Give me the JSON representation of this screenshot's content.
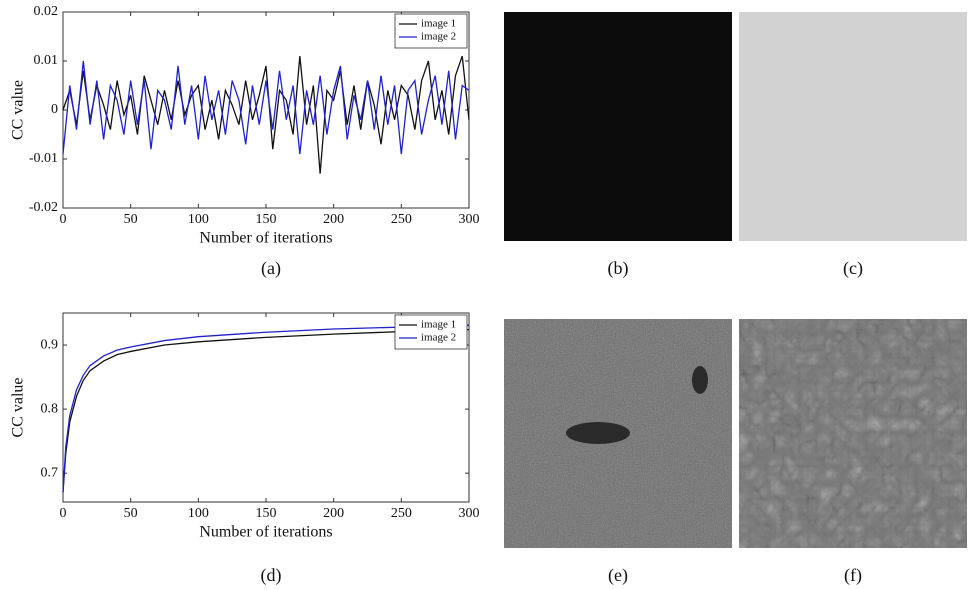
{
  "chart_data": [
    {
      "type": "line",
      "caption": "(a)",
      "x_label": "Number of iterations",
      "y_label": "CC value",
      "x": [
        0,
        5,
        10,
        15,
        20,
        25,
        30,
        35,
        40,
        45,
        50,
        55,
        60,
        65,
        70,
        75,
        80,
        85,
        90,
        95,
        100,
        105,
        110,
        115,
        120,
        125,
        130,
        135,
        140,
        145,
        150,
        155,
        160,
        165,
        170,
        175,
        180,
        185,
        190,
        195,
        200,
        205,
        210,
        215,
        220,
        225,
        230,
        235,
        240,
        245,
        250,
        255,
        260,
        265,
        270,
        275,
        280,
        285,
        290,
        295,
        300
      ],
      "series": [
        {
          "name": "image 1",
          "color": "#111111",
          "values": [
            0,
            0.004,
            -0.003,
            0.008,
            -0.002,
            0.005,
            0.001,
            -0.004,
            0.006,
            -0.001,
            0.003,
            -0.005,
            0.007,
            0.002,
            -0.003,
            0.004,
            -0.002,
            0.006,
            -0.001,
            0.003,
            0.005,
            -0.004,
            0.002,
            -0.006,
            0.004,
            0.001,
            -0.003,
            0.006,
            -0.002,
            0.003,
            0.009,
            -0.008,
            0.004,
            0.002,
            -0.005,
            0.011,
            -0.003,
            0.005,
            -0.013,
            0.004,
            0.002,
            0.008,
            -0.003,
            0.005,
            -0.004,
            0.006,
            0.001,
            -0.007,
            0.004,
            -0.002,
            0.005,
            0.003,
            -0.004,
            0.006,
            0.01,
            -0.002,
            0.004,
            -0.005,
            0.007,
            0.011,
            -0.002
          ]
        },
        {
          "name": "image 2",
          "color": "#2020cc",
          "values": [
            -0.009,
            0.005,
            -0.004,
            0.01,
            -0.003,
            0.006,
            -0.006,
            0.005,
            0.002,
            -0.005,
            0.006,
            -0.003,
            0.006,
            -0.008,
            0.004,
            0.002,
            -0.004,
            0.009,
            -0.003,
            0.005,
            -0.006,
            0.007,
            -0.002,
            0.004,
            -0.005,
            0.006,
            0.002,
            -0.007,
            0.005,
            -0.003,
            0.006,
            -0.004,
            0.008,
            -0.002,
            0.005,
            -0.009,
            0.004,
            -0.003,
            0.007,
            -0.005,
            0.004,
            0.009,
            -0.006,
            0.003,
            -0.002,
            0.006,
            -0.004,
            0.007,
            -0.003,
            0.005,
            -0.009,
            0.004,
            0.006,
            -0.005,
            0.002,
            0.007,
            -0.003,
            0.008,
            -0.006,
            0.005,
            0.004
          ]
        }
      ],
      "xlim": [
        0,
        300
      ],
      "xticks": [
        0,
        50,
        100,
        150,
        200,
        250,
        300
      ],
      "ylim": [
        -0.02,
        0.02
      ],
      "yticks": [
        -0.02,
        -0.01,
        0,
        0.01,
        0.02
      ],
      "legend": "upper right"
    },
    {
      "type": "line",
      "caption": "(d)",
      "x_label": "Number of iterations",
      "y_label": "CC value",
      "x": [
        0,
        2,
        5,
        10,
        15,
        20,
        30,
        40,
        50,
        75,
        100,
        150,
        200,
        250,
        300
      ],
      "series": [
        {
          "name": "image 1",
          "color": "#111111",
          "values": [
            0.67,
            0.73,
            0.78,
            0.82,
            0.845,
            0.86,
            0.875,
            0.885,
            0.89,
            0.9,
            0.905,
            0.912,
            0.917,
            0.921,
            0.924
          ]
        },
        {
          "name": "image 2",
          "color": "#2020cc",
          "values": [
            0.67,
            0.74,
            0.79,
            0.83,
            0.853,
            0.868,
            0.883,
            0.892,
            0.897,
            0.907,
            0.913,
            0.92,
            0.925,
            0.928,
            0.931
          ]
        }
      ],
      "xlim": [
        0,
        300
      ],
      "xticks": [
        0,
        50,
        100,
        150,
        200,
        250,
        300
      ],
      "ylim": [
        0.655,
        0.95
      ],
      "yticks": [
        0.7,
        0.8,
        0.9
      ],
      "legend": "upper right"
    }
  ],
  "images": [
    {
      "caption": "(b)"
    },
    {
      "caption": "(c)"
    },
    {
      "caption": "(e)"
    },
    {
      "caption": "(f)"
    }
  ]
}
